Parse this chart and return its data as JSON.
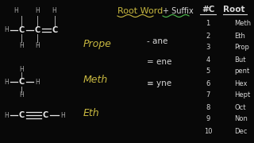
{
  "background_color": "#080808",
  "title_root_word": "Root Word",
  "title_suffix": "+ Suffix",
  "root_word_color": "#c8b840",
  "suffix_color": "#50c050",
  "header_color": "#d8d8d8",
  "table_header_c": "#C",
  "table_header_root": "Root",
  "numbers": [
    1,
    2,
    3,
    4,
    5,
    6,
    7,
    8,
    9,
    10
  ],
  "roots": [
    "Meth",
    "Eth",
    "Prop",
    "But",
    "pent",
    "Hex",
    "Hept",
    "Oct",
    "Non",
    "Dec"
  ],
  "prope_label": "Prope",
  "meth_label": "Meth",
  "eth_label": "Eth",
  "suffix_ane": "- ane",
  "suffix_ene": "= ene",
  "suffix_yne": "≡ yne",
  "molecule_color": "#e8e8e8",
  "h_color": "#aaaaaa"
}
